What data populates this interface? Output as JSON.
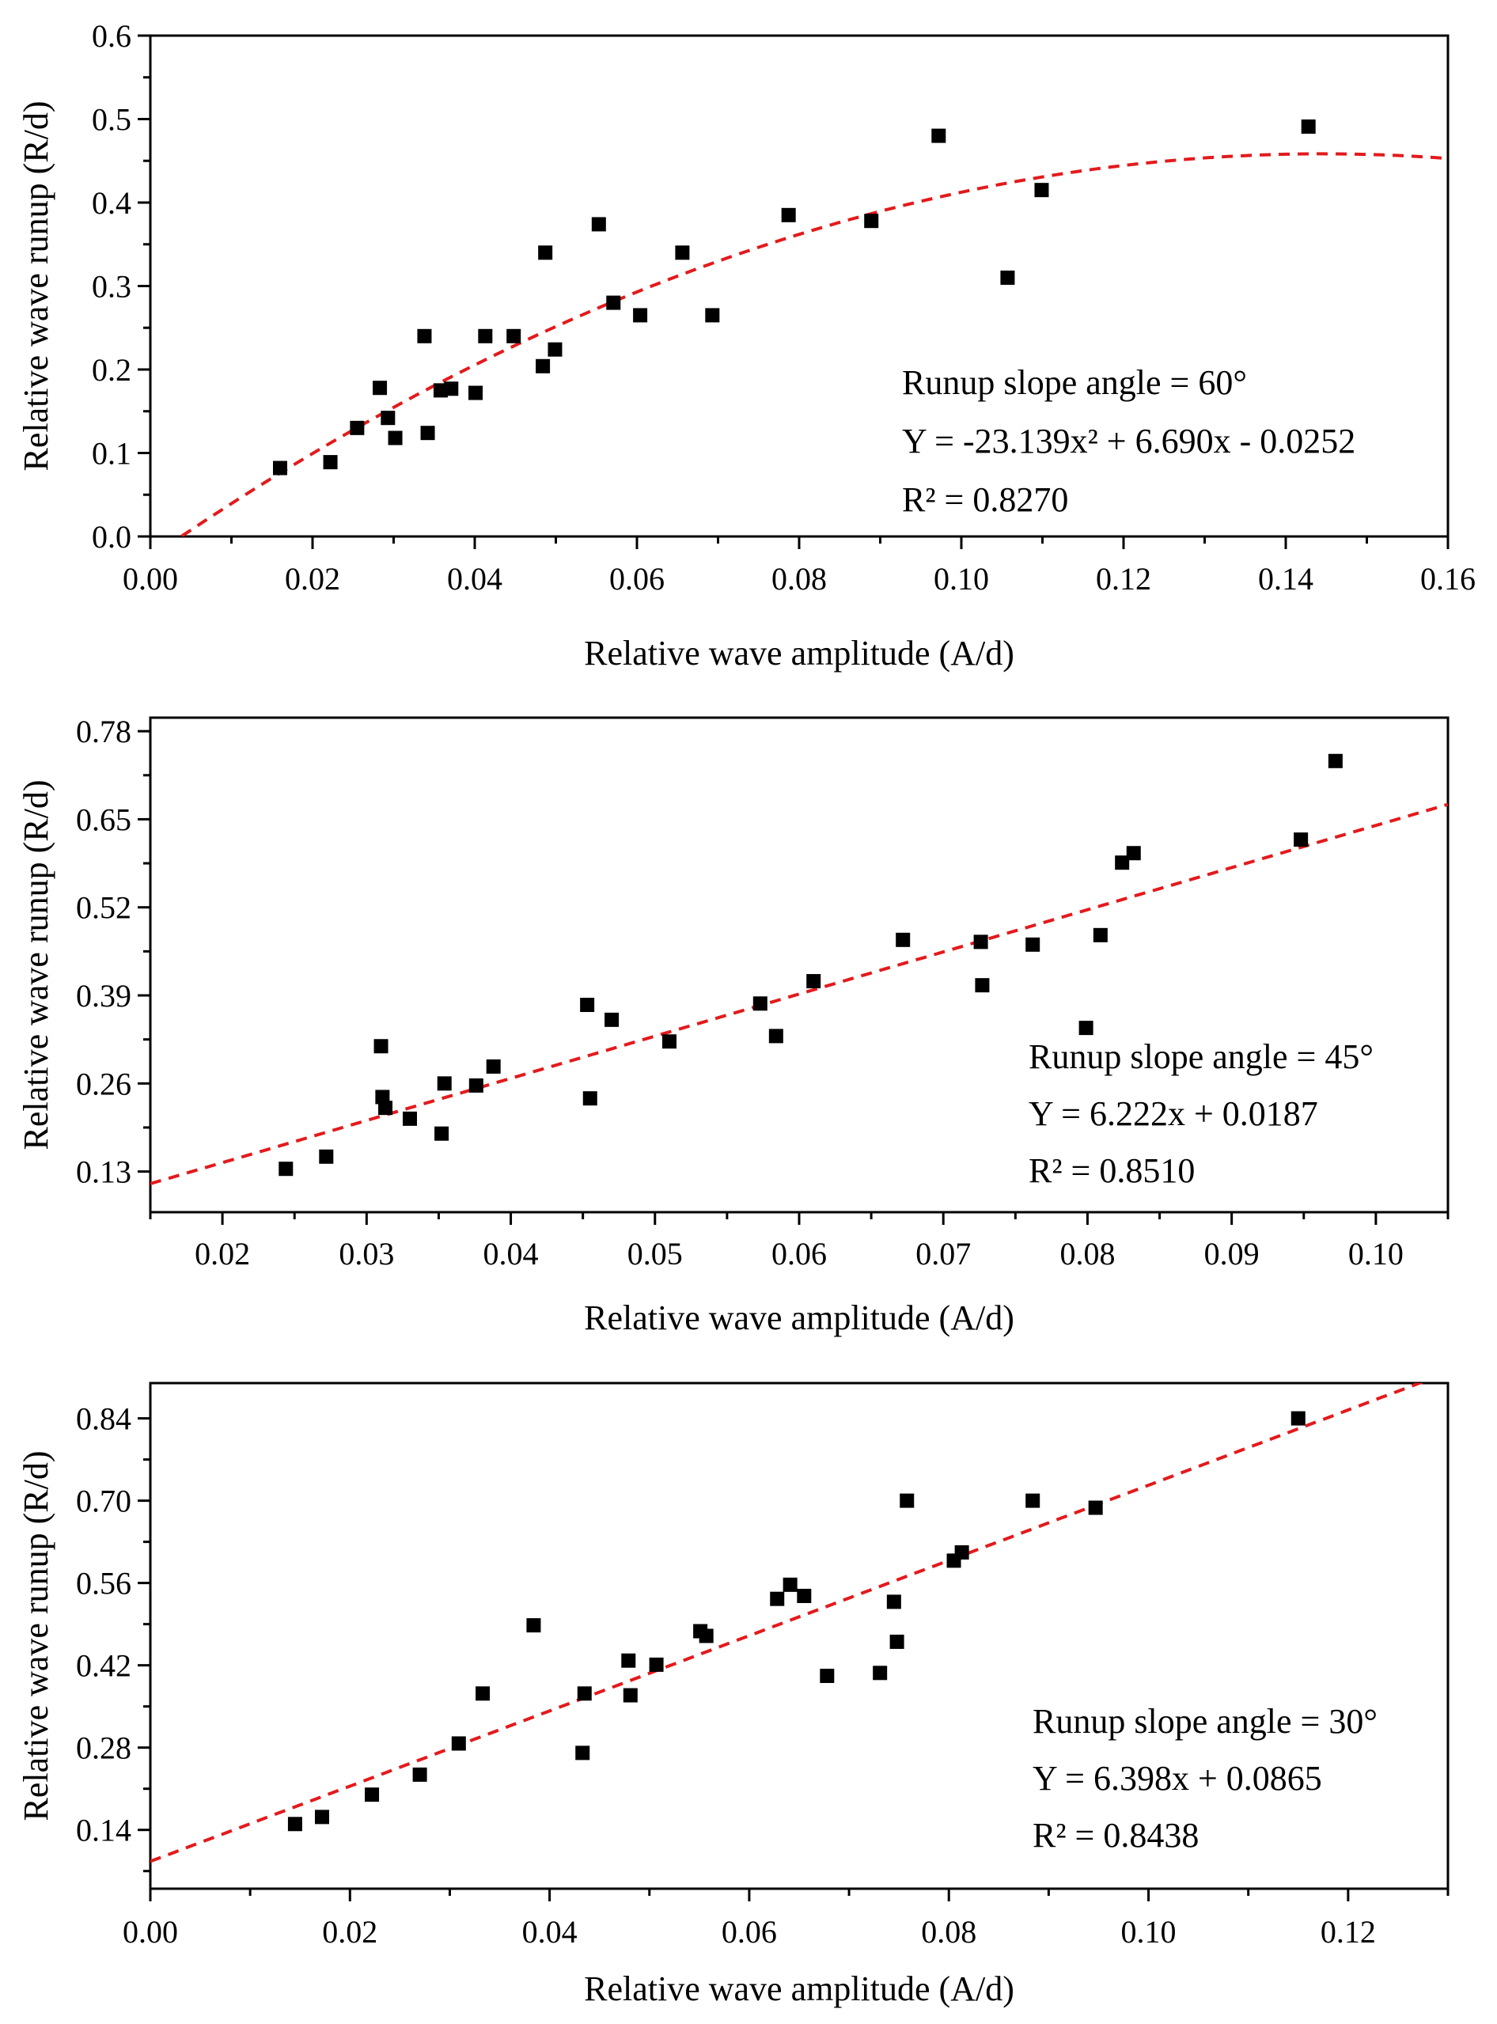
{
  "chart_data": [
    {
      "type": "scatter",
      "xlabel": "Relative wave amplitude (A/d)",
      "ylabel": "Relative wave runup (R/d)",
      "xlim": [
        0,
        0.16
      ],
      "ylim": [
        0,
        0.6
      ],
      "xticks": [
        "0.00",
        "0.02",
        "0.04",
        "0.06",
        "0.08",
        "0.10",
        "0.12",
        "0.14",
        "0.16"
      ],
      "yticks": [
        "0.0",
        "0.1",
        "0.2",
        "0.3",
        "0.4",
        "0.5",
        "0.6"
      ],
      "annotation": {
        "title": "Runup slope angle = 60°",
        "equation": "Y = -23.139x² + 6.690x - 0.0252",
        "r2": "R² = 0.8270"
      },
      "fit": {
        "kind": "quadratic",
        "a": -23.139,
        "b": 6.69,
        "c": -0.0252
      },
      "marker_color": "#000000",
      "fit_color": "#e31a1c",
      "points": [
        [
          0.016,
          0.082
        ],
        [
          0.0222,
          0.089
        ],
        [
          0.0255,
          0.13
        ],
        [
          0.0283,
          0.178
        ],
        [
          0.0293,
          0.142
        ],
        [
          0.0302,
          0.118
        ],
        [
          0.0338,
          0.24
        ],
        [
          0.0342,
          0.124
        ],
        [
          0.0358,
          0.175
        ],
        [
          0.0371,
          0.177
        ],
        [
          0.0401,
          0.172
        ],
        [
          0.0413,
          0.24
        ],
        [
          0.0448,
          0.24
        ],
        [
          0.0484,
          0.204
        ],
        [
          0.0487,
          0.34
        ],
        [
          0.0499,
          0.224
        ],
        [
          0.0553,
          0.374
        ],
        [
          0.0571,
          0.28
        ],
        [
          0.0604,
          0.265
        ],
        [
          0.0656,
          0.34
        ],
        [
          0.0693,
          0.265
        ],
        [
          0.0787,
          0.385
        ],
        [
          0.0889,
          0.378
        ],
        [
          0.0972,
          0.48
        ],
        [
          0.1057,
          0.31
        ],
        [
          0.1099,
          0.415
        ],
        [
          0.1428,
          0.491
        ]
      ]
    },
    {
      "type": "scatter",
      "xlabel": "Relative wave amplitude (A/d)",
      "ylabel": "Relative wave runup (R/d)",
      "xlim": [
        0.015,
        0.105
      ],
      "ylim": [
        0.07,
        0.8
      ],
      "xticks": [
        "0.02",
        "0.03",
        "0.04",
        "0.05",
        "0.06",
        "0.07",
        "0.08",
        "0.09",
        "0.10"
      ],
      "yticks": [
        "0.13",
        "0.26",
        "0.39",
        "0.52",
        "0.65",
        "0.78"
      ],
      "annotation": {
        "title": "Runup slope angle = 45°",
        "equation": "Y = 6.222x + 0.0187",
        "r2": "R² = 0.8510"
      },
      "fit": {
        "kind": "linear",
        "a": 0,
        "b": 6.222,
        "c": 0.0187
      },
      "marker_color": "#000000",
      "fit_color": "#e31a1c",
      "points": [
        [
          0.0244,
          0.134
        ],
        [
          0.0272,
          0.152
        ],
        [
          0.031,
          0.315
        ],
        [
          0.0311,
          0.24
        ],
        [
          0.0313,
          0.224
        ],
        [
          0.033,
          0.208
        ],
        [
          0.0352,
          0.186
        ],
        [
          0.0354,
          0.26
        ],
        [
          0.0376,
          0.257
        ],
        [
          0.0388,
          0.285
        ],
        [
          0.0453,
          0.376
        ],
        [
          0.0455,
          0.238
        ],
        [
          0.047,
          0.354
        ],
        [
          0.051,
          0.322
        ],
        [
          0.0573,
          0.378
        ],
        [
          0.0584,
          0.33
        ],
        [
          0.061,
          0.411
        ],
        [
          0.0672,
          0.472
        ],
        [
          0.0726,
          0.469
        ],
        [
          0.0727,
          0.405
        ],
        [
          0.0762,
          0.465
        ],
        [
          0.0799,
          0.342
        ],
        [
          0.0809,
          0.479
        ],
        [
          0.0824,
          0.586
        ],
        [
          0.0832,
          0.6
        ],
        [
          0.0948,
          0.62
        ],
        [
          0.0972,
          0.736
        ]
      ]
    },
    {
      "type": "scatter",
      "xlabel": "Relative wave amplitude (A/d)",
      "ylabel": "Relative wave runup (R/d)",
      "xlim": [
        0,
        0.13
      ],
      "ylim": [
        0.04,
        0.9
      ],
      "xticks": [
        "0.00",
        "0.02",
        "0.04",
        "0.06",
        "0.08",
        "0.10",
        "0.12"
      ],
      "yticks": [
        "0.14",
        "0.28",
        "0.42",
        "0.56",
        "0.70",
        "0.84"
      ],
      "annotation": {
        "title": "Runup slope angle = 30°",
        "equation": "Y = 6.398x + 0.0865",
        "r2": "R² = 0.8438"
      },
      "fit": {
        "kind": "linear",
        "a": 0,
        "b": 6.398,
        "c": 0.0865
      },
      "marker_color": "#000000",
      "fit_color": "#e31a1c",
      "points": [
        [
          0.0145,
          0.15
        ],
        [
          0.0172,
          0.162
        ],
        [
          0.0222,
          0.2
        ],
        [
          0.027,
          0.234
        ],
        [
          0.0309,
          0.287
        ],
        [
          0.0333,
          0.372
        ],
        [
          0.0384,
          0.488
        ],
        [
          0.0433,
          0.271
        ],
        [
          0.0435,
          0.372
        ],
        [
          0.0479,
          0.428
        ],
        [
          0.0481,
          0.369
        ],
        [
          0.0507,
          0.421
        ],
        [
          0.0551,
          0.478
        ],
        [
          0.0557,
          0.47
        ],
        [
          0.0628,
          0.533
        ],
        [
          0.0641,
          0.557
        ],
        [
          0.0655,
          0.538
        ],
        [
          0.0678,
          0.402
        ],
        [
          0.0731,
          0.407
        ],
        [
          0.0745,
          0.528
        ],
        [
          0.0748,
          0.46
        ],
        [
          0.0758,
          0.7
        ],
        [
          0.0805,
          0.598
        ],
        [
          0.0813,
          0.612
        ],
        [
          0.0884,
          0.7
        ],
        [
          0.0947,
          0.688
        ],
        [
          0.115,
          0.84
        ]
      ]
    }
  ]
}
